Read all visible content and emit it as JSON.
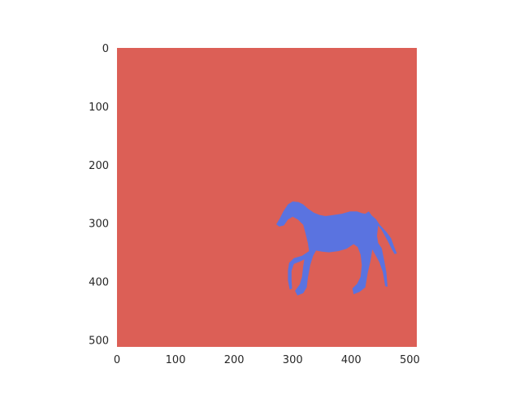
{
  "chart_data": {
    "type": "heatmap",
    "title": "",
    "xlabel": "",
    "ylabel": "",
    "xlim": [
      0,
      512
    ],
    "ylim": [
      512,
      0
    ],
    "xticks": [
      0,
      100,
      200,
      300,
      400,
      500
    ],
    "yticks": [
      0,
      100,
      200,
      300,
      400,
      500
    ],
    "xtick_labels": [
      "0",
      "100",
      "200",
      "300",
      "400",
      "500"
    ],
    "ytick_labels": [
      "0",
      "100",
      "200",
      "300",
      "400",
      "500"
    ],
    "grid": false,
    "background_color": "#dc5f56",
    "classes": [
      {
        "name": "background",
        "color": "#dc5f56"
      },
      {
        "name": "horse",
        "color": "#5a73e0"
      }
    ],
    "mask_region_x": [
      272,
      478
    ],
    "mask_region_y": [
      262,
      424
    ]
  }
}
